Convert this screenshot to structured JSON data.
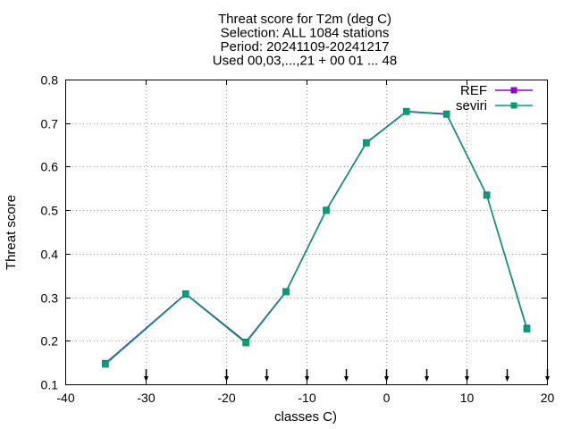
{
  "chart_data": {
    "type": "line",
    "title_lines": [
      "Threat score  for T2m (deg C)",
      "Selection: ALL    1084 stations",
      "Period: 20241109-20241217",
      "Used 00,03,...,21 + 00 01 ... 48"
    ],
    "xlabel": "classes C)",
    "ylabel": "Threat score",
    "xlim": [
      -40,
      20
    ],
    "ylim": [
      0.1,
      0.8
    ],
    "xticks": [
      -40,
      -30,
      -20,
      -10,
      0,
      10,
      20
    ],
    "xtick_labels": [
      "-40",
      "-30",
      "-20",
      "-10",
      "0",
      "10",
      "20"
    ],
    "yticks": [
      0.1,
      0.2,
      0.3,
      0.4,
      0.5,
      0.6,
      0.7,
      0.8
    ],
    "ytick_labels": [
      "0.1",
      "0.2",
      "0.3",
      "0.4",
      "0.5",
      "0.6",
      "0.7",
      "0.8"
    ],
    "grid": true,
    "legend_position": "top-right",
    "class_limits": [
      -30,
      -20,
      -15,
      -10,
      -5,
      0,
      5,
      10,
      15,
      20
    ],
    "series": [
      {
        "name": "REF",
        "color": "#9400d3",
        "x": [
          -35,
          -25,
          -17.5,
          -12.5,
          -7.5,
          -2.5,
          2.5,
          7.5,
          12.5,
          17.5
        ],
        "y": [
          0.148,
          0.308,
          0.197,
          0.313,
          0.5,
          0.655,
          0.727,
          0.721,
          0.535,
          0.229
        ]
      },
      {
        "name": "seviri",
        "color": "#009e73",
        "x": [
          -35,
          -25,
          -17.5,
          -12.5,
          -7.5,
          -2.5,
          2.5,
          7.5,
          12.5,
          17.5
        ],
        "y": [
          0.146,
          0.307,
          0.195,
          0.312,
          0.499,
          0.654,
          0.726,
          0.72,
          0.534,
          0.227
        ]
      }
    ]
  }
}
